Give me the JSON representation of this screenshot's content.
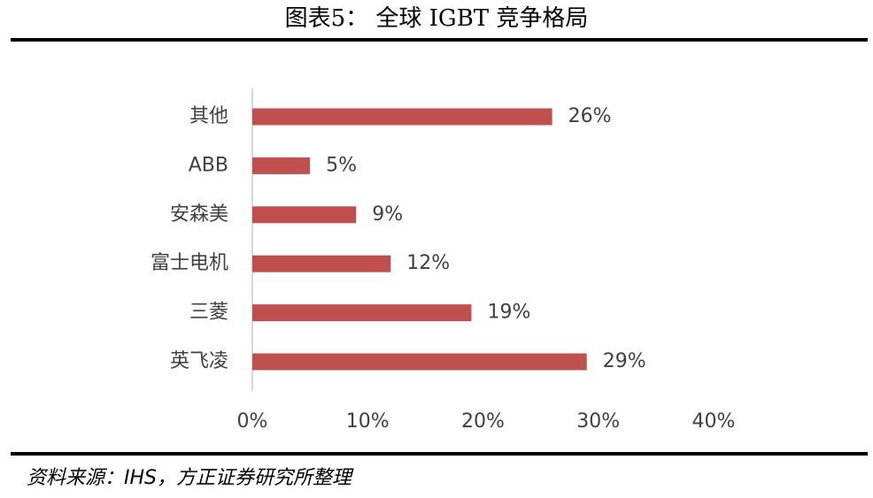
{
  "chart_data": {
    "type": "bar",
    "orientation": "horizontal",
    "title": "图表5：  全球 IGBT 竞争格局",
    "source": "资料来源：IHS，方正证券研究所整理",
    "categories": [
      "其他",
      "ABB",
      "安森美",
      "富士电机",
      "三菱",
      "英飞凌"
    ],
    "values": [
      26,
      5,
      9,
      12,
      19,
      29
    ],
    "value_labels": [
      "26%",
      "5%",
      "9%",
      "12%",
      "19%",
      "29%"
    ],
    "color": "#c0504d",
    "xlim": [
      0,
      40
    ],
    "xticks": [
      {
        "value": 0,
        "label": "0%"
      },
      {
        "value": 10,
        "label": "10%"
      },
      {
        "value": 20,
        "label": "20%"
      },
      {
        "value": 30,
        "label": "30%"
      },
      {
        "value": 40,
        "label": "40%"
      }
    ]
  }
}
